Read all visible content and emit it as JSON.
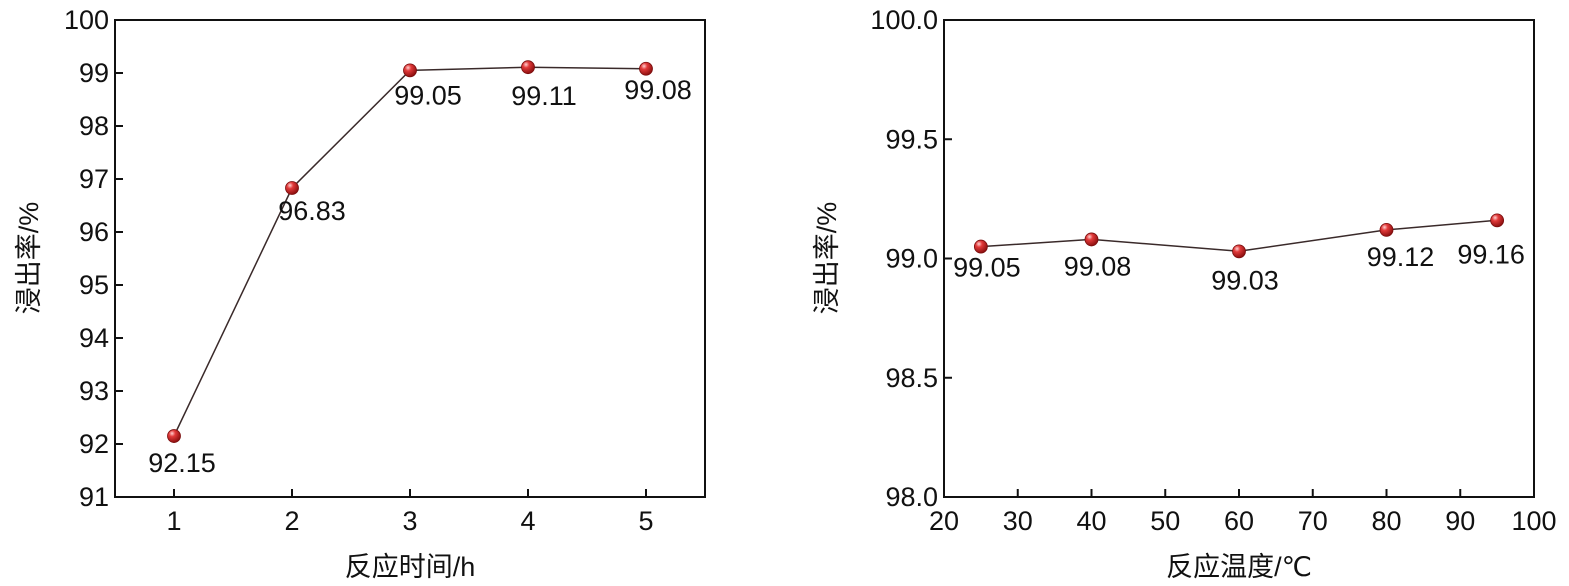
{
  "chart_data": [
    {
      "type": "line",
      "xlabel": "反应时间/h",
      "ylabel": "浸出率/%",
      "x": [
        1,
        2,
        3,
        4,
        5
      ],
      "y": [
        92.15,
        96.83,
        99.05,
        99.11,
        99.08
      ],
      "data_labels": [
        "92.15",
        "96.83",
        "99.05",
        "99.11",
        "99.08"
      ],
      "xlim": [
        0.5,
        5.5
      ],
      "ylim": [
        91,
        100
      ],
      "x_ticks": [
        "1",
        "2",
        "3",
        "4",
        "5"
      ],
      "y_ticks": [
        "91",
        "92",
        "93",
        "94",
        "95",
        "96",
        "97",
        "98",
        "99",
        "100"
      ],
      "grid": false,
      "line_color": "#3a2a2a",
      "marker_color": "#cc2b2b"
    },
    {
      "type": "line",
      "xlabel": "反应温度/℃",
      "ylabel": "浸出率/%",
      "x": [
        25,
        40,
        60,
        80,
        95
      ],
      "y": [
        99.05,
        99.08,
        99.03,
        99.12,
        99.16
      ],
      "data_labels": [
        "99.05",
        "99.08",
        "99.03",
        "99.12",
        "99.16"
      ],
      "xlim": [
        20,
        100
      ],
      "ylim": [
        98.0,
        100.0
      ],
      "x_ticks": [
        "20",
        "30",
        "40",
        "50",
        "60",
        "70",
        "80",
        "90",
        "100"
      ],
      "y_ticks": [
        "98.0",
        "98.5",
        "99.0",
        "99.5",
        "100.0"
      ],
      "grid": false,
      "line_color": "#3a2a2a",
      "marker_color": "#cc2b2b"
    }
  ]
}
